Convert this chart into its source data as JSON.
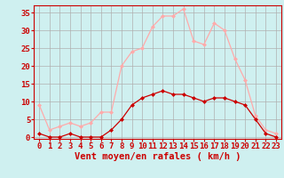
{
  "hours": [
    0,
    1,
    2,
    3,
    4,
    5,
    6,
    7,
    8,
    9,
    10,
    11,
    12,
    13,
    14,
    15,
    16,
    17,
    18,
    19,
    20,
    21,
    22,
    23
  ],
  "wind_avg": [
    1,
    0,
    0,
    1,
    0,
    0,
    0,
    2,
    5,
    9,
    11,
    12,
    13,
    12,
    12,
    11,
    10,
    11,
    11,
    10,
    9,
    5,
    1,
    0
  ],
  "wind_gust": [
    9,
    2,
    3,
    4,
    3,
    4,
    7,
    7,
    20,
    24,
    25,
    31,
    34,
    34,
    36,
    27,
    26,
    32,
    30,
    22,
    16,
    6,
    2,
    1
  ],
  "background_color": "#cff0f0",
  "grid_color": "#b0b0b0",
  "line_avg_color": "#cc0000",
  "line_gust_color": "#ffaaaa",
  "marker": "D",
  "marker_size": 2.0,
  "xlabel": "Vent moyen/en rafales ( km/h )",
  "xlabel_color": "#cc0000",
  "xlabel_fontsize": 7.5,
  "ylabel_ticks": [
    0,
    5,
    10,
    15,
    20,
    25,
    30,
    35
  ],
  "ylim": [
    -0.5,
    37
  ],
  "xlim": [
    -0.5,
    23.5
  ],
  "tick_color": "#cc0000",
  "tick_fontsize": 6.5
}
